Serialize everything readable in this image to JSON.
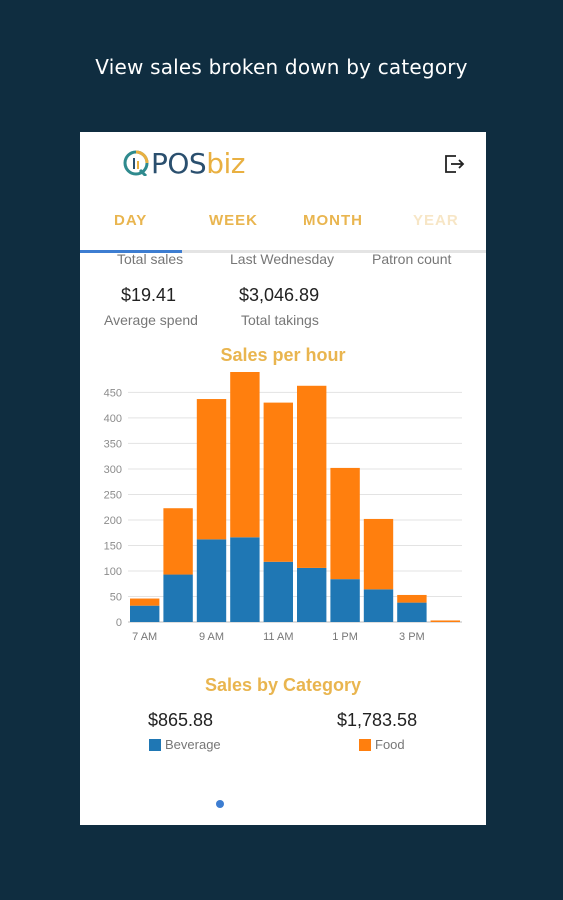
{
  "caption": "View sales broken down by category",
  "app": {
    "logo_text_pos": "POS",
    "logo_text_biz": "biz",
    "icons": {
      "logout": "logout-icon",
      "logo": "posbiz-logo-icon"
    }
  },
  "tabs": [
    {
      "label": "DAY",
      "selected": true
    },
    {
      "label": "WEEK"
    },
    {
      "label": "MONTH"
    },
    {
      "label": "YEAR",
      "faded": true
    }
  ],
  "stats": {
    "total_sales_label": "Total sales",
    "last_wednesday_label": "Last Wednesday",
    "patron_count_label": "Patron count",
    "average_spend_value": "$19.41",
    "average_spend_label": "Average spend",
    "total_takings_value": "$3,046.89",
    "total_takings_label": "Total takings"
  },
  "sales_per_hour": {
    "title": "Sales per hour"
  },
  "chart_data": {
    "type": "bar",
    "stacked": true,
    "categories": [
      "7 AM",
      "8 AM",
      "9 AM",
      "10 AM",
      "11 AM",
      "12 PM",
      "1 PM",
      "2 PM",
      "3 PM",
      "4 PM"
    ],
    "x_tick_labels": [
      "7 AM",
      "9 AM",
      "11 AM",
      "1 PM",
      "3 PM"
    ],
    "series": [
      {
        "name": "Beverage",
        "color": "#1f77b4",
        "values": [
          32,
          93,
          162,
          166,
          118,
          106,
          84,
          64,
          38,
          0
        ]
      },
      {
        "name": "Food",
        "color": "#ff7f0e",
        "values": [
          14,
          130,
          275,
          324,
          312,
          357,
          218,
          138,
          15,
          3
        ]
      }
    ],
    "yticks": [
      0,
      50,
      100,
      150,
      200,
      250,
      300,
      350,
      400,
      450
    ],
    "ylim": [
      0,
      490
    ],
    "grid": true
  },
  "sales_by_category": {
    "title": "Sales by Category",
    "beverage_value": "$865.88",
    "beverage_label": "Beverage",
    "beverage_color": "#1f77b4",
    "food_value": "$1,783.58",
    "food_label": "Food",
    "food_color": "#ff7f0e"
  }
}
